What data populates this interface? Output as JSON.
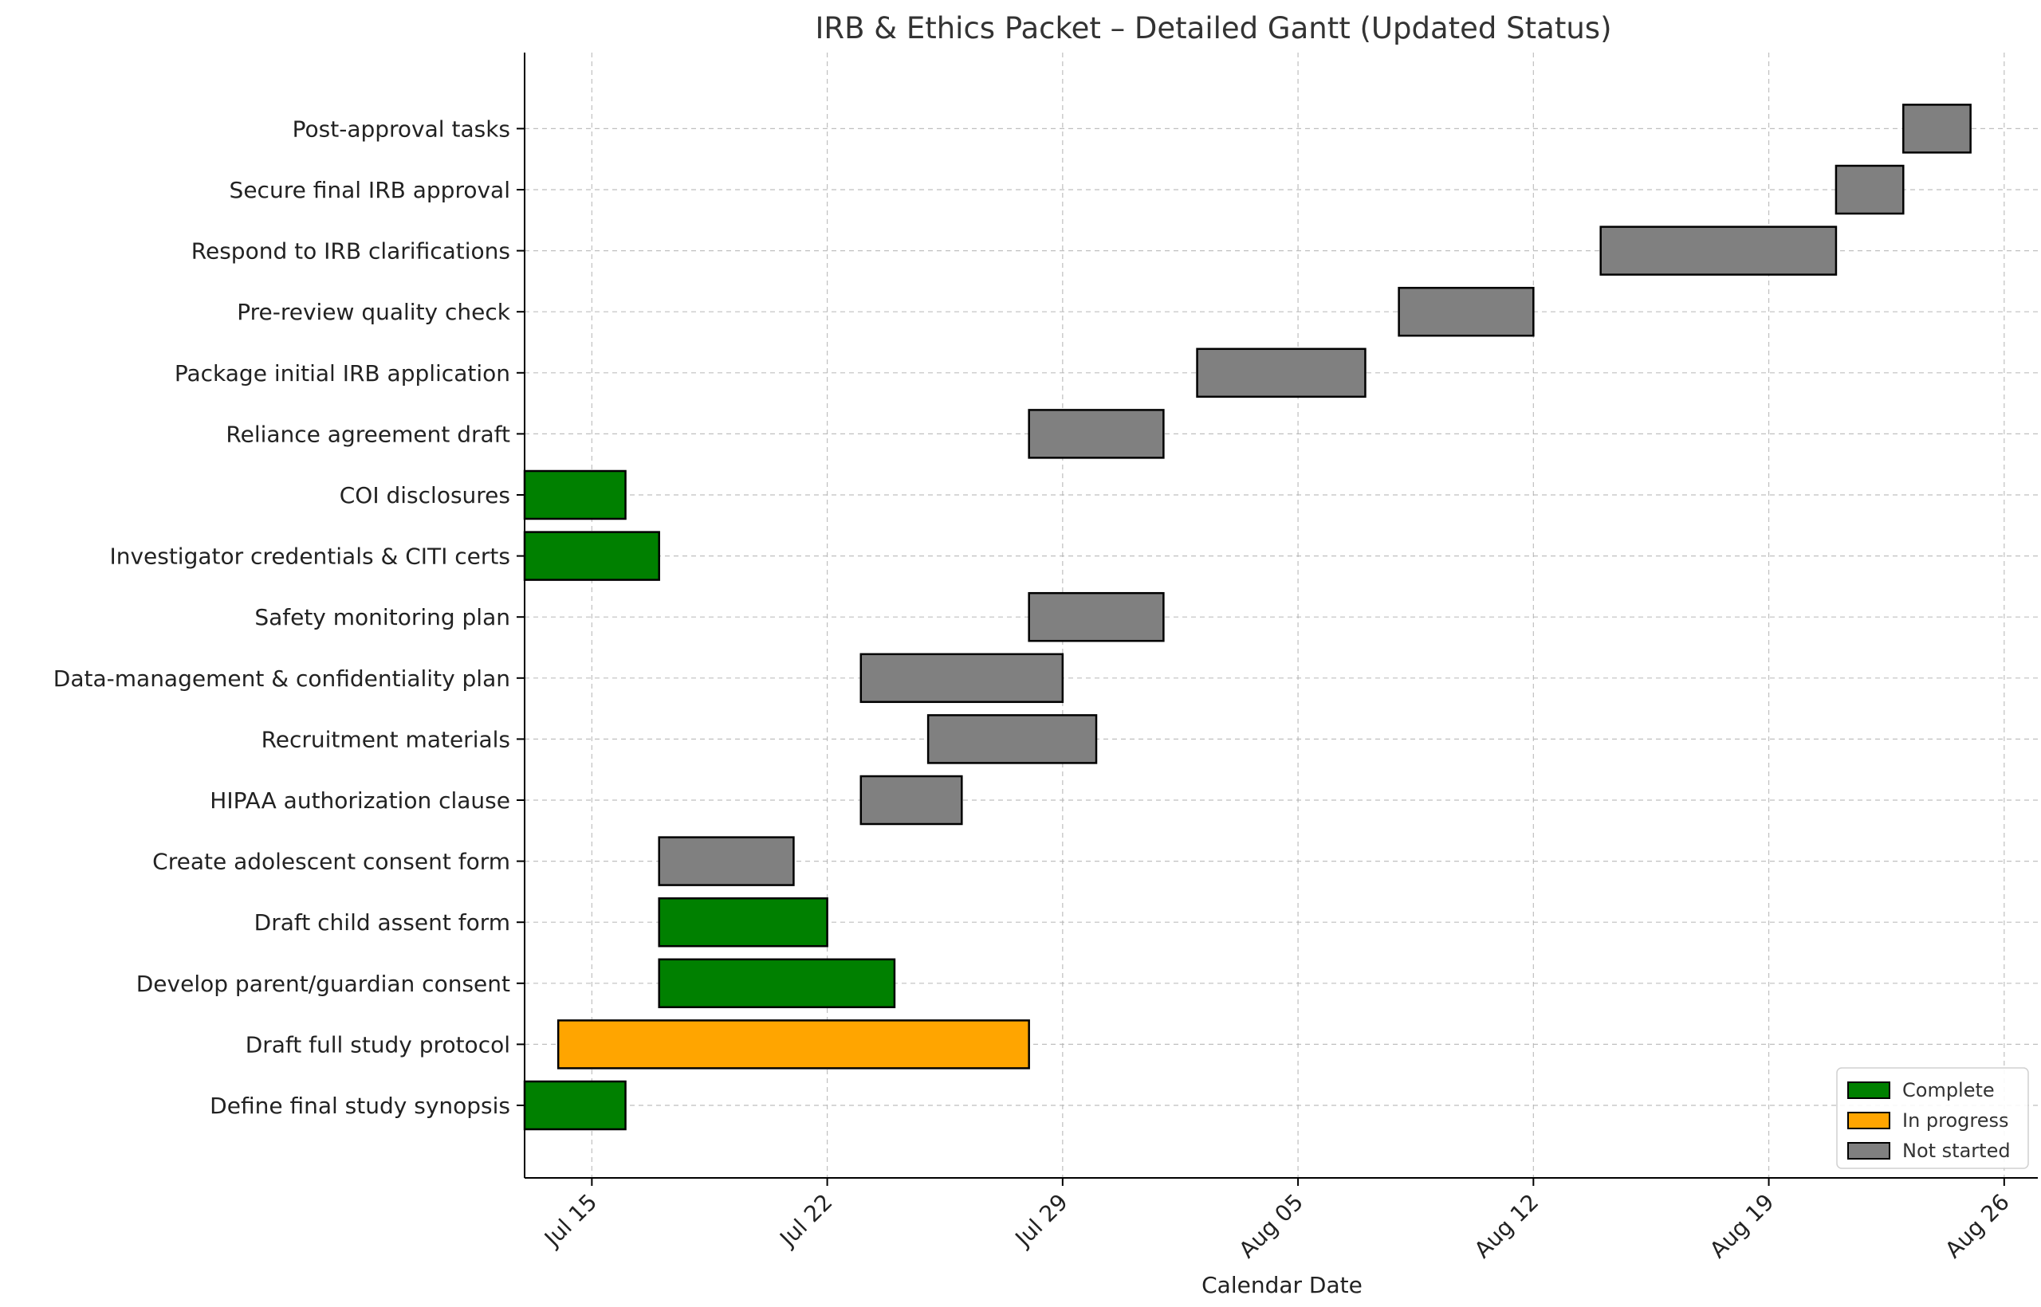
{
  "chart_data": {
    "type": "gantt",
    "title": "IRB & Ethics Packet – Detailed Gantt (Updated Status)",
    "xlabel": "Calendar Date",
    "ylabel": "",
    "year": 2024,
    "xlim": [
      "2024-07-13",
      "2024-08-27"
    ],
    "x_ticks": [
      {
        "date": "2024-07-15",
        "label": "Jul 15"
      },
      {
        "date": "2024-07-22",
        "label": "Jul 22"
      },
      {
        "date": "2024-07-29",
        "label": "Jul 29"
      },
      {
        "date": "2024-08-05",
        "label": "Aug 05"
      },
      {
        "date": "2024-08-12",
        "label": "Aug 12"
      },
      {
        "date": "2024-08-19",
        "label": "Aug 19"
      },
      {
        "date": "2024-08-26",
        "label": "Aug 26"
      }
    ],
    "grid": true,
    "legend_position": "bottom-right",
    "status_colors": {
      "Complete": "#008000",
      "In progress": "#FFA500",
      "Not started": "#808080"
    },
    "legend": [
      "Complete",
      "In progress",
      "Not started"
    ],
    "tasks": [
      {
        "name": "Define final study synopsis",
        "start": "2024-07-13",
        "end": "2024-07-16",
        "status": "Complete"
      },
      {
        "name": "Draft full study protocol",
        "start": "2024-07-14",
        "end": "2024-07-28",
        "status": "In progress"
      },
      {
        "name": "Develop parent/guardian consent",
        "start": "2024-07-17",
        "end": "2024-07-24",
        "status": "Complete"
      },
      {
        "name": "Draft child assent form",
        "start": "2024-07-17",
        "end": "2024-07-22",
        "status": "Complete"
      },
      {
        "name": "Create adolescent consent form",
        "start": "2024-07-17",
        "end": "2024-07-21",
        "status": "Not started"
      },
      {
        "name": "HIPAA authorization clause",
        "start": "2024-07-23",
        "end": "2024-07-26",
        "status": "Not started"
      },
      {
        "name": "Recruitment materials",
        "start": "2024-07-25",
        "end": "2024-07-30",
        "status": "Not started"
      },
      {
        "name": "Data-management & confidentiality plan",
        "start": "2024-07-23",
        "end": "2024-07-29",
        "status": "Not started"
      },
      {
        "name": "Safety monitoring plan",
        "start": "2024-07-28",
        "end": "2024-08-01",
        "status": "Not started"
      },
      {
        "name": "Investigator credentials & CITI certs",
        "start": "2024-07-13",
        "end": "2024-07-17",
        "status": "Complete"
      },
      {
        "name": "COI disclosures",
        "start": "2024-07-13",
        "end": "2024-07-16",
        "status": "Complete"
      },
      {
        "name": "Reliance agreement draft",
        "start": "2024-07-28",
        "end": "2024-08-01",
        "status": "Not started"
      },
      {
        "name": "Package initial IRB application",
        "start": "2024-08-02",
        "end": "2024-08-07",
        "status": "Not started"
      },
      {
        "name": "Pre-review quality check",
        "start": "2024-08-08",
        "end": "2024-08-12",
        "status": "Not started"
      },
      {
        "name": "Respond to IRB clarifications",
        "start": "2024-08-14",
        "end": "2024-08-21",
        "status": "Not started"
      },
      {
        "name": "Secure final IRB approval",
        "start": "2024-08-21",
        "end": "2024-08-23",
        "status": "Not started"
      },
      {
        "name": "Post-approval tasks",
        "start": "2024-08-23",
        "end": "2024-08-25",
        "status": "Not started"
      }
    ]
  }
}
